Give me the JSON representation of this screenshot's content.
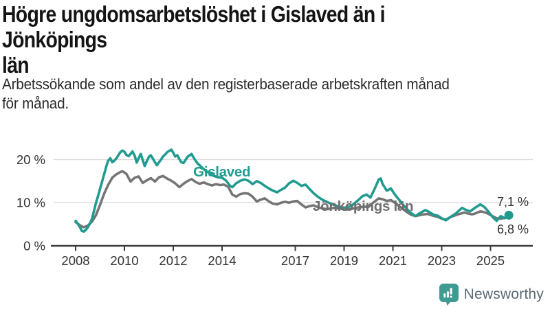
{
  "header": {
    "title": "Högre ungdomsarbetslöshet i Gislaved än i Jönköpings\nlän",
    "subtitle": "Arbetssökande som andel av den registerbaserade arbetskraften månad\nför månad."
  },
  "branding": {
    "logo_text": "Newsworthy",
    "logo_icon": "bar-chart-speech-bubble-icon",
    "logo_color": "#3f9a92",
    "logo_text_color": "#5a6a72"
  },
  "chart_data": {
    "type": "line",
    "title": "Högre ungdomsarbetslöshet i Gislaved än i Jönköpings län",
    "xlabel": "",
    "ylabel": "",
    "x_unit": "year (monthly data)",
    "y_unit": "percent",
    "xlim": [
      2008.0,
      2025.83
    ],
    "ylim": [
      0,
      23.5
    ],
    "grid": "horizontal",
    "legend_position": "inline-labels",
    "x_ticks": [
      "2008",
      "2010",
      "2012",
      "2014",
      "2017",
      "2019",
      "2021",
      "2023",
      "2025"
    ],
    "x_tick_years": [
      2008,
      2010,
      2012,
      2014,
      2017,
      2019,
      2021,
      2023,
      2025
    ],
    "y_ticks": [
      {
        "value": 0,
        "label": "0 %"
      },
      {
        "value": 10,
        "label": "10 %"
      },
      {
        "value": 20,
        "label": "20 %"
      }
    ],
    "colors": {
      "gislaved": "#219b90",
      "jonkopings_lan": "#757575",
      "grid": "#d8d8d8",
      "axis": "#3b3b3b",
      "tick_text": "#333333",
      "value_label_text": "#2f2f2f"
    },
    "series": [
      {
        "name": "Jönköpings län",
        "color": "#757575",
        "label_color": "#6e6e6e",
        "label_pos": [
          2017.72,
          8.1
        ],
        "end_label": "6,8 %",
        "end_label_position": "below",
        "end_dot": false,
        "points": [
          [
            2008.0,
            5.5
          ],
          [
            2008.17,
            4.8
          ],
          [
            2008.33,
            4.3
          ],
          [
            2008.5,
            4.7
          ],
          [
            2008.67,
            5.6
          ],
          [
            2008.83,
            7.1
          ],
          [
            2009.0,
            9.5
          ],
          [
            2009.17,
            12.1
          ],
          [
            2009.33,
            14.1
          ],
          [
            2009.5,
            15.8
          ],
          [
            2009.67,
            16.6
          ],
          [
            2009.83,
            17.1
          ],
          [
            2009.92,
            17.3
          ],
          [
            2010.08,
            16.7
          ],
          [
            2010.25,
            14.9
          ],
          [
            2010.42,
            15.8
          ],
          [
            2010.58,
            16.1
          ],
          [
            2010.75,
            14.6
          ],
          [
            2010.92,
            15.2
          ],
          [
            2011.08,
            15.7
          ],
          [
            2011.25,
            14.9
          ],
          [
            2011.42,
            15.9
          ],
          [
            2011.58,
            16.2
          ],
          [
            2011.75,
            15.6
          ],
          [
            2011.92,
            15.1
          ],
          [
            2012.08,
            14.5
          ],
          [
            2012.25,
            13.6
          ],
          [
            2012.42,
            14.4
          ],
          [
            2012.58,
            15.0
          ],
          [
            2012.75,
            15.5
          ],
          [
            2012.92,
            14.8
          ],
          [
            2013.08,
            14.4
          ],
          [
            2013.25,
            14.7
          ],
          [
            2013.42,
            14.3
          ],
          [
            2013.58,
            14.0
          ],
          [
            2013.75,
            14.3
          ],
          [
            2013.92,
            14.1
          ],
          [
            2014.08,
            14.2
          ],
          [
            2014.25,
            13.7
          ],
          [
            2014.42,
            11.9
          ],
          [
            2014.58,
            11.4
          ],
          [
            2014.75,
            12.0
          ],
          [
            2014.92,
            12.2
          ],
          [
            2015.08,
            12.1
          ],
          [
            2015.25,
            11.4
          ],
          [
            2015.42,
            10.3
          ],
          [
            2015.58,
            10.7
          ],
          [
            2015.75,
            11.0
          ],
          [
            2015.92,
            10.3
          ],
          [
            2016.08,
            9.8
          ],
          [
            2016.25,
            9.6
          ],
          [
            2016.42,
            10.0
          ],
          [
            2016.58,
            10.2
          ],
          [
            2016.75,
            10.0
          ],
          [
            2016.92,
            10.3
          ],
          [
            2017.08,
            10.4
          ],
          [
            2017.25,
            9.6
          ],
          [
            2017.42,
            8.9
          ],
          [
            2017.58,
            9.2
          ],
          [
            2017.75,
            9.4
          ],
          [
            2017.92,
            9.0
          ],
          [
            2018.08,
            8.7
          ],
          [
            2018.33,
            8.5
          ],
          [
            2018.58,
            8.8
          ],
          [
            2018.83,
            8.6
          ],
          [
            2019.08,
            8.4
          ],
          [
            2019.33,
            8.6
          ],
          [
            2019.58,
            8.9
          ],
          [
            2019.83,
            9.1
          ],
          [
            2020.0,
            9.0
          ],
          [
            2020.17,
            9.9
          ],
          [
            2020.42,
            11.0
          ],
          [
            2020.58,
            10.8
          ],
          [
            2020.75,
            10.4
          ],
          [
            2020.92,
            10.6
          ],
          [
            2021.08,
            10.0
          ],
          [
            2021.25,
            9.2
          ],
          [
            2021.42,
            8.5
          ],
          [
            2021.58,
            7.8
          ],
          [
            2021.75,
            7.2
          ],
          [
            2021.92,
            6.9
          ],
          [
            2022.17,
            7.2
          ],
          [
            2022.42,
            7.4
          ],
          [
            2022.58,
            7.1
          ],
          [
            2022.83,
            6.7
          ],
          [
            2023.0,
            6.3
          ],
          [
            2023.17,
            6.1
          ],
          [
            2023.42,
            6.8
          ],
          [
            2023.67,
            7.3
          ],
          [
            2023.92,
            7.7
          ],
          [
            2024.08,
            7.5
          ],
          [
            2024.25,
            7.3
          ],
          [
            2024.42,
            7.6
          ],
          [
            2024.58,
            8.0
          ],
          [
            2024.75,
            7.8
          ],
          [
            2024.92,
            7.4
          ],
          [
            2025.08,
            6.9
          ],
          [
            2025.25,
            6.4
          ],
          [
            2025.42,
            6.3
          ],
          [
            2025.58,
            6.5
          ],
          [
            2025.75,
            6.8
          ]
        ]
      },
      {
        "name": "Gislaved",
        "color": "#219b90",
        "label_color": "#219b90",
        "label_pos": [
          2012.82,
          16.1
        ],
        "end_label": "7,1 %",
        "end_label_position": "above",
        "end_dot": true,
        "points": [
          [
            2008.0,
            5.8
          ],
          [
            2008.08,
            5.2
          ],
          [
            2008.17,
            4.4
          ],
          [
            2008.25,
            3.5
          ],
          [
            2008.33,
            3.3
          ],
          [
            2008.42,
            3.7
          ],
          [
            2008.5,
            4.3
          ],
          [
            2008.58,
            5.1
          ],
          [
            2008.67,
            6.3
          ],
          [
            2008.75,
            8.0
          ],
          [
            2008.83,
            9.9
          ],
          [
            2008.92,
            11.6
          ],
          [
            2009.0,
            13.2
          ],
          [
            2009.08,
            14.8
          ],
          [
            2009.17,
            16.6
          ],
          [
            2009.25,
            18.3
          ],
          [
            2009.33,
            19.7
          ],
          [
            2009.42,
            20.3
          ],
          [
            2009.5,
            19.4
          ],
          [
            2009.58,
            19.7
          ],
          [
            2009.67,
            20.3
          ],
          [
            2009.75,
            21.0
          ],
          [
            2009.83,
            21.7
          ],
          [
            2009.92,
            22.1
          ],
          [
            2010.0,
            21.8
          ],
          [
            2010.08,
            21.1
          ],
          [
            2010.17,
            20.8
          ],
          [
            2010.25,
            21.3
          ],
          [
            2010.33,
            21.9
          ],
          [
            2010.42,
            20.9
          ],
          [
            2010.5,
            19.3
          ],
          [
            2010.58,
            20.3
          ],
          [
            2010.67,
            21.3
          ],
          [
            2010.75,
            19.9
          ],
          [
            2010.83,
            18.5
          ],
          [
            2010.92,
            19.7
          ],
          [
            2011.0,
            20.6
          ],
          [
            2011.08,
            21.0
          ],
          [
            2011.17,
            20.2
          ],
          [
            2011.25,
            19.4
          ],
          [
            2011.33,
            18.7
          ],
          [
            2011.42,
            19.4
          ],
          [
            2011.5,
            20.0
          ],
          [
            2011.58,
            20.7
          ],
          [
            2011.67,
            21.2
          ],
          [
            2011.75,
            21.7
          ],
          [
            2011.83,
            22.0
          ],
          [
            2011.92,
            22.3
          ],
          [
            2012.0,
            21.6
          ],
          [
            2012.08,
            20.7
          ],
          [
            2012.17,
            21.0
          ],
          [
            2012.25,
            20.1
          ],
          [
            2012.33,
            19.4
          ],
          [
            2012.42,
            19.2
          ],
          [
            2012.5,
            19.9
          ],
          [
            2012.58,
            20.6
          ],
          [
            2012.67,
            21.0
          ],
          [
            2012.75,
            21.3
          ],
          [
            2012.83,
            20.5
          ],
          [
            2012.92,
            19.7
          ],
          [
            2013.0,
            19.1
          ],
          [
            2013.17,
            18.2
          ],
          [
            2013.33,
            17.4
          ],
          [
            2013.5,
            16.8
          ],
          [
            2013.67,
            16.2
          ],
          [
            2013.83,
            15.9
          ],
          [
            2014.0,
            15.8
          ],
          [
            2014.17,
            15.1
          ],
          [
            2014.33,
            13.9
          ],
          [
            2014.42,
            13.6
          ],
          [
            2014.58,
            14.5
          ],
          [
            2014.75,
            15.1
          ],
          [
            2014.92,
            15.4
          ],
          [
            2015.08,
            15.1
          ],
          [
            2015.25,
            14.3
          ],
          [
            2015.42,
            15.0
          ],
          [
            2015.58,
            14.6
          ],
          [
            2015.75,
            13.9
          ],
          [
            2015.92,
            13.3
          ],
          [
            2016.08,
            12.8
          ],
          [
            2016.25,
            12.4
          ],
          [
            2016.42,
            13.0
          ],
          [
            2016.58,
            13.5
          ],
          [
            2016.75,
            14.5
          ],
          [
            2016.92,
            15.1
          ],
          [
            2017.08,
            14.6
          ],
          [
            2017.25,
            13.9
          ],
          [
            2017.42,
            14.2
          ],
          [
            2017.58,
            13.2
          ],
          [
            2017.75,
            12.2
          ],
          [
            2017.92,
            11.4
          ],
          [
            2018.08,
            10.8
          ],
          [
            2018.33,
            10.1
          ],
          [
            2018.58,
            9.5
          ],
          [
            2018.83,
            9.0
          ],
          [
            2019.08,
            8.8
          ],
          [
            2019.33,
            9.4
          ],
          [
            2019.58,
            10.6
          ],
          [
            2019.75,
            11.5
          ],
          [
            2019.92,
            11.9
          ],
          [
            2020.08,
            11.2
          ],
          [
            2020.25,
            13.2
          ],
          [
            2020.42,
            15.4
          ],
          [
            2020.5,
            15.6
          ],
          [
            2020.58,
            14.3
          ],
          [
            2020.75,
            12.8
          ],
          [
            2020.92,
            13.3
          ],
          [
            2021.08,
            11.9
          ],
          [
            2021.25,
            10.7
          ],
          [
            2021.42,
            9.5
          ],
          [
            2021.58,
            8.5
          ],
          [
            2021.75,
            7.6
          ],
          [
            2021.92,
            6.9
          ],
          [
            2022.08,
            7.5
          ],
          [
            2022.33,
            8.3
          ],
          [
            2022.5,
            7.8
          ],
          [
            2022.67,
            7.2
          ],
          [
            2022.83,
            7.0
          ],
          [
            2023.0,
            6.4
          ],
          [
            2023.17,
            5.9
          ],
          [
            2023.33,
            6.6
          ],
          [
            2023.58,
            7.5
          ],
          [
            2023.83,
            8.8
          ],
          [
            2024.0,
            8.3
          ],
          [
            2024.17,
            8.0
          ],
          [
            2024.33,
            8.7
          ],
          [
            2024.58,
            9.6
          ],
          [
            2024.75,
            9.0
          ],
          [
            2024.92,
            7.9
          ],
          [
            2025.08,
            6.7
          ],
          [
            2025.25,
            5.8
          ],
          [
            2025.42,
            6.9
          ],
          [
            2025.58,
            6.4
          ],
          [
            2025.75,
            7.1
          ]
        ]
      }
    ]
  }
}
